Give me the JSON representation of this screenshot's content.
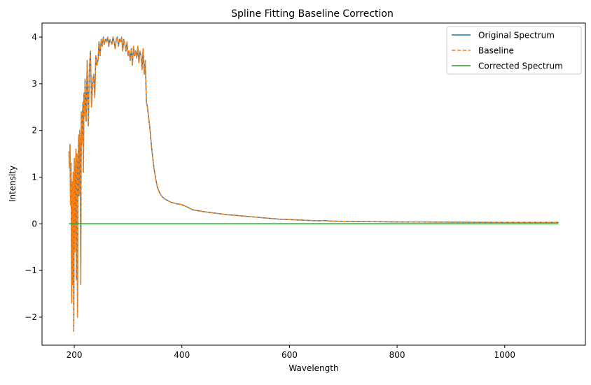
{
  "chart_data": {
    "type": "line",
    "title": "Spline Fitting Baseline Correction",
    "xlabel": "Wavelength",
    "ylabel": "Intensity",
    "xlim": [
      140,
      1150
    ],
    "ylim": [
      -2.6,
      4.3
    ],
    "xticks": [
      200,
      400,
      600,
      800,
      1000
    ],
    "yticks": [
      -2,
      -1,
      0,
      1,
      2,
      3,
      4
    ],
    "xtick_labels": [
      "200",
      "400",
      "600",
      "800",
      "1000"
    ],
    "ytick_labels": [
      "−2",
      "−1",
      "0",
      "1",
      "2",
      "3",
      "4"
    ],
    "grid": false,
    "legend_position": "top-right",
    "series": [
      {
        "name": "Original Spectrum",
        "color": "#1f77b4",
        "style": "solid",
        "x": [
          190,
          191,
          192,
          193,
          194,
          195,
          196,
          197,
          198,
          199,
          200,
          201,
          202,
          203,
          204,
          205,
          206,
          207,
          208,
          209,
          210,
          211,
          212,
          213,
          214,
          215,
          216,
          217,
          218,
          219,
          220,
          222,
          224,
          226,
          228,
          230,
          232,
          234,
          236,
          238,
          240,
          242,
          244,
          246,
          248,
          250,
          252,
          254,
          256,
          258,
          260,
          262,
          264,
          266,
          268,
          270,
          272,
          274,
          276,
          278,
          280,
          282,
          284,
          286,
          288,
          290,
          292,
          294,
          296,
          298,
          300,
          302,
          304,
          306,
          308,
          310,
          312,
          314,
          316,
          318,
          320,
          322,
          324,
          326,
          328,
          330,
          332,
          334,
          336,
          338,
          340,
          342,
          344,
          346,
          348,
          350,
          354,
          358,
          362,
          366,
          370,
          375,
          380,
          390,
          400,
          410,
          420,
          440,
          460,
          480,
          500,
          520,
          540,
          560,
          580,
          600,
          620,
          640,
          655,
          665,
          675,
          690,
          720,
          760,
          800,
          900,
          1000,
          1100
        ],
        "y": [
          1.55,
          1.2,
          1.7,
          0.4,
          1.3,
          -1.7,
          0.9,
          -1.3,
          1.1,
          -2.3,
          1.4,
          -0.6,
          1.0,
          1.6,
          -1.2,
          1.5,
          -2.0,
          1.2,
          1.9,
          0.6,
          2.0,
          1.5,
          -1.3,
          2.4,
          1.7,
          2.2,
          2.6,
          1.1,
          2.8,
          2.3,
          3.1,
          2.2,
          3.5,
          2.1,
          3.3,
          3.7,
          2.5,
          3.0,
          3.2,
          2.7,
          3.6,
          3.4,
          3.5,
          3.9,
          3.6,
          3.95,
          3.8,
          4.0,
          3.85,
          3.95,
          3.9,
          4.0,
          3.8,
          3.95,
          3.9,
          3.85,
          4.0,
          3.9,
          3.75,
          3.95,
          4.0,
          3.8,
          3.95,
          3.9,
          4.0,
          3.7,
          3.95,
          3.85,
          3.7,
          3.9,
          3.6,
          3.7,
          3.5,
          3.75,
          3.4,
          3.8,
          3.6,
          3.7,
          3.55,
          3.8,
          3.45,
          3.7,
          3.6,
          3.3,
          3.75,
          3.2,
          3.5,
          2.6,
          2.5,
          2.3,
          2.1,
          1.85,
          1.6,
          1.4,
          1.2,
          1.05,
          0.8,
          0.68,
          0.6,
          0.55,
          0.52,
          0.49,
          0.46,
          0.43,
          0.41,
          0.36,
          0.3,
          0.26,
          0.23,
          0.2,
          0.18,
          0.16,
          0.14,
          0.12,
          0.1,
          0.09,
          0.08,
          0.07,
          0.065,
          0.07,
          0.06,
          0.055,
          0.05,
          0.045,
          0.04,
          0.035,
          0.03,
          0.03
        ]
      },
      {
        "name": "Baseline",
        "color": "#ff7f0e",
        "style": "dashed",
        "x": [
          190,
          191,
          192,
          193,
          194,
          195,
          196,
          197,
          198,
          199,
          200,
          201,
          202,
          203,
          204,
          205,
          206,
          207,
          208,
          209,
          210,
          211,
          212,
          213,
          214,
          215,
          216,
          217,
          218,
          219,
          220,
          222,
          224,
          226,
          228,
          230,
          232,
          234,
          236,
          238,
          240,
          242,
          244,
          246,
          248,
          250,
          252,
          254,
          256,
          258,
          260,
          262,
          264,
          266,
          268,
          270,
          272,
          274,
          276,
          278,
          280,
          282,
          284,
          286,
          288,
          290,
          292,
          294,
          296,
          298,
          300,
          302,
          304,
          306,
          308,
          310,
          312,
          314,
          316,
          318,
          320,
          322,
          324,
          326,
          328,
          330,
          332,
          334,
          336,
          338,
          340,
          342,
          344,
          346,
          348,
          350,
          354,
          358,
          362,
          366,
          370,
          375,
          380,
          390,
          400,
          410,
          420,
          440,
          460,
          480,
          500,
          520,
          540,
          560,
          580,
          600,
          620,
          640,
          655,
          665,
          675,
          690,
          720,
          760,
          800,
          900,
          1000,
          1100
        ],
        "y": [
          1.55,
          1.2,
          1.7,
          0.4,
          1.3,
          -1.7,
          0.9,
          -1.3,
          1.1,
          -2.3,
          1.4,
          -0.6,
          1.0,
          1.6,
          -1.2,
          1.5,
          -2.0,
          1.2,
          1.9,
          0.6,
          2.0,
          1.5,
          -1.3,
          2.4,
          1.7,
          2.2,
          2.6,
          1.1,
          2.8,
          2.3,
          3.1,
          2.2,
          3.5,
          2.1,
          3.3,
          3.7,
          2.5,
          3.0,
          3.2,
          2.7,
          3.6,
          3.4,
          3.5,
          3.9,
          3.6,
          3.95,
          3.8,
          4.0,
          3.85,
          3.95,
          3.9,
          4.0,
          3.8,
          3.95,
          3.9,
          3.85,
          4.0,
          3.9,
          3.75,
          3.95,
          4.0,
          3.8,
          3.95,
          3.9,
          4.0,
          3.7,
          3.95,
          3.85,
          3.7,
          3.9,
          3.6,
          3.7,
          3.5,
          3.75,
          3.4,
          3.8,
          3.6,
          3.7,
          3.55,
          3.8,
          3.45,
          3.7,
          3.6,
          3.3,
          3.75,
          3.2,
          3.5,
          2.6,
          2.5,
          2.3,
          2.1,
          1.85,
          1.6,
          1.4,
          1.2,
          1.05,
          0.8,
          0.68,
          0.6,
          0.55,
          0.52,
          0.49,
          0.46,
          0.43,
          0.41,
          0.36,
          0.3,
          0.26,
          0.23,
          0.2,
          0.18,
          0.16,
          0.14,
          0.12,
          0.1,
          0.09,
          0.08,
          0.07,
          0.065,
          0.07,
          0.06,
          0.055,
          0.05,
          0.045,
          0.04,
          0.035,
          0.03,
          0.03
        ]
      },
      {
        "name": "Corrected Spectrum",
        "color": "#2ca02c",
        "style": "solid",
        "x": [
          190,
          1100
        ],
        "y": [
          0,
          0
        ]
      }
    ]
  }
}
